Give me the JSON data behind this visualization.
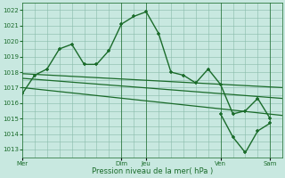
{
  "bg_color": "#c8e8e0",
  "grid_color": "#88bbaa",
  "line_color": "#1a6b2a",
  "ylim": [
    1012.5,
    1022.5
  ],
  "yticks": [
    1013,
    1014,
    1015,
    1016,
    1017,
    1018,
    1019,
    1020,
    1021,
    1022
  ],
  "xlabel": "Pression niveau de la mer( hPa )",
  "day_labels": [
    "Mer",
    "Dim",
    "Jeu",
    "Ven",
    "Sam"
  ],
  "day_positions": [
    0,
    48,
    60,
    96,
    120
  ],
  "xlim": [
    0,
    126
  ],
  "main_x": [
    0,
    6,
    12,
    18,
    24,
    30,
    36,
    42,
    48,
    54,
    60,
    66,
    72,
    78,
    84,
    90,
    96,
    102,
    108,
    114,
    120
  ],
  "main_y": [
    1016.6,
    1017.8,
    1018.2,
    1019.5,
    1019.8,
    1018.5,
    1018.5,
    1019.4,
    1021.1,
    1021.6,
    1021.9,
    1020.5,
    1018.0,
    1017.8,
    1017.3,
    1018.2,
    1017.2,
    1015.3,
    1015.5,
    1016.3,
    1015.0
  ],
  "trend1_x": [
    0,
    126
  ],
  "trend1_y": [
    1017.9,
    1017.0
  ],
  "trend2_x": [
    0,
    126
  ],
  "trend2_y": [
    1017.6,
    1016.3
  ],
  "trend3_x": [
    0,
    126
  ],
  "trend3_y": [
    1017.0,
    1015.2
  ],
  "low_x": [
    96,
    102,
    108,
    114,
    120
  ],
  "low_y": [
    1015.3,
    1013.8,
    1012.8,
    1014.2,
    1014.7
  ],
  "vline_positions": [
    48,
    60,
    96,
    120
  ]
}
